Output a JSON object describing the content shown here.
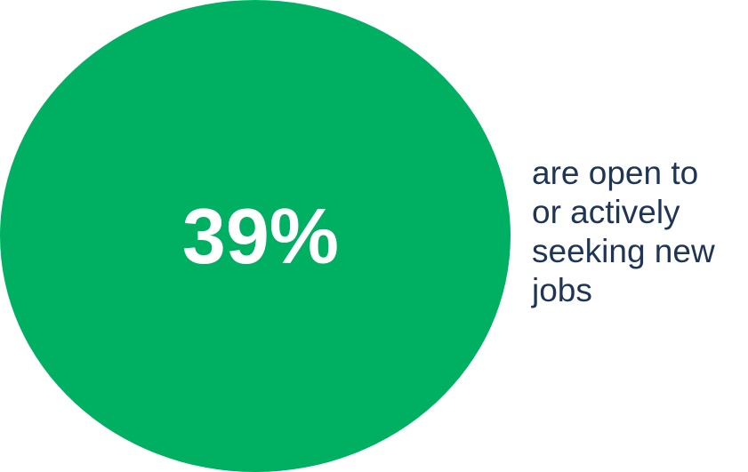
{
  "stat": {
    "value": "39%",
    "fraction": 0.39,
    "caption_lines": [
      "are open to",
      "or actively",
      "seeking new",
      "jobs"
    ]
  },
  "colors": {
    "circle": "#00b062",
    "value_text": "#ffffff",
    "caption_text": "#1f3556",
    "background": "#ffffff"
  }
}
